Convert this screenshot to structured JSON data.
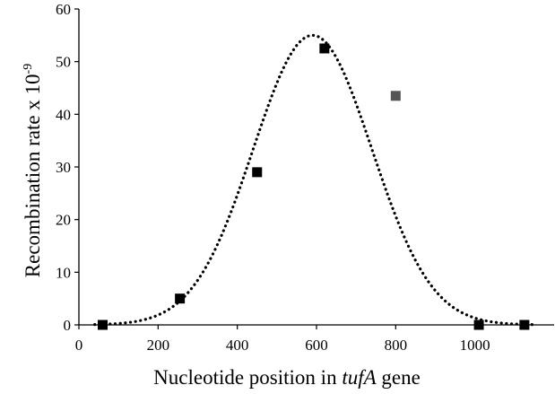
{
  "chart_data": {
    "type": "scatter",
    "xlabel": {
      "prefix": "Nucleotide position in ",
      "italic": "tufA",
      "suffix": " gene"
    },
    "ylabel": {
      "text": "Recombination rate x 10",
      "superscript": "-9"
    },
    "xlim": [
      0,
      1200
    ],
    "ylim": [
      0,
      60
    ],
    "x_ticks": [
      0,
      200,
      400,
      600,
      800,
      1000
    ],
    "y_ticks": [
      0,
      10,
      20,
      30,
      40,
      50,
      60
    ],
    "grid": false,
    "legend": "none",
    "series": [
      {
        "marker": "square",
        "color": "#000000",
        "points": [
          {
            "x": 60,
            "y": 0
          },
          {
            "x": 255,
            "y": 5
          },
          {
            "x": 450,
            "y": 29
          },
          {
            "x": 620,
            "y": 52.5
          },
          {
            "x": 1010,
            "y": 0
          },
          {
            "x": 1125,
            "y": 0
          }
        ]
      },
      {
        "marker": "square",
        "color": "#555555",
        "points": [
          {
            "x": 800,
            "y": 43.5
          }
        ]
      }
    ],
    "fit_curve": {
      "style": "dotted",
      "color": "#000000",
      "shape": "gaussian",
      "peak_x": 590,
      "peak_y": 55,
      "sigma": 150,
      "x_range": [
        40,
        1150
      ]
    }
  }
}
